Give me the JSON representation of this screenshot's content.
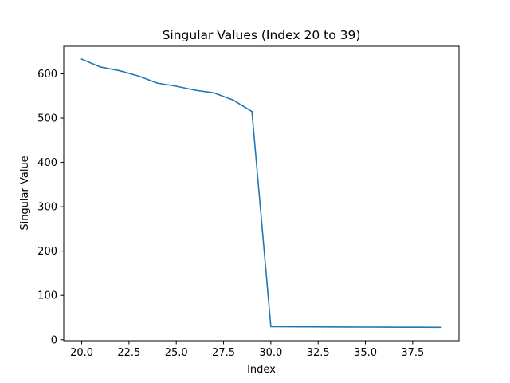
{
  "chart_data": {
    "type": "line",
    "title": "Singular Values (Index 20 to 39)",
    "xlabel": "Index",
    "ylabel": "Singular Value",
    "grid": false,
    "xlim": [
      19.05,
      39.95
    ],
    "ylim": [
      -2.2,
      662
    ],
    "x_ticks": [
      20.0,
      22.5,
      25.0,
      27.5,
      30.0,
      32.5,
      35.0,
      37.5
    ],
    "x_tick_labels": [
      "20.0",
      "22.5",
      "25.0",
      "27.5",
      "30.0",
      "32.5",
      "35.0",
      "37.5"
    ],
    "y_ticks": [
      0,
      100,
      200,
      300,
      400,
      500,
      600
    ],
    "y_tick_labels": [
      "0",
      "100",
      "200",
      "300",
      "400",
      "500",
      "600"
    ],
    "series": [
      {
        "color": "#1f77b4",
        "x": [
          20,
          21,
          22,
          23,
          24,
          25,
          26,
          27,
          28,
          29,
          30,
          31,
          32,
          33,
          34,
          35,
          36,
          37,
          38,
          39
        ],
        "values": [
          633,
          615,
          607,
          595,
          579,
          572,
          563,
          557,
          541,
          515,
          29.5,
          29.2,
          28.9,
          28.7,
          28.5,
          28.4,
          28.2,
          28.1,
          28.0,
          27.9
        ]
      }
    ]
  }
}
